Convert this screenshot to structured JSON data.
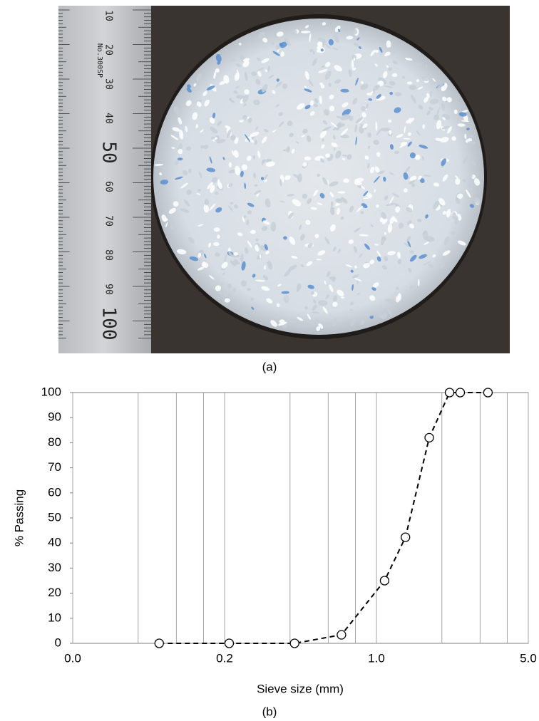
{
  "figure": {
    "label_a": "(a)",
    "label_b": "(b)"
  },
  "photo": {
    "ruler_labels": [
      "10",
      "20",
      "30",
      "40",
      "50",
      "60",
      "70",
      "80",
      "90",
      "100"
    ],
    "ruler_brand": "No.300SP"
  },
  "chart_data": {
    "type": "line",
    "x_label": "Sieve size (mm)",
    "y_label": "% Passing",
    "x_scale": "log",
    "xlim": [
      0.04,
      5.0
    ],
    "xticks": [
      {
        "value": 0.04,
        "label": "0.0"
      },
      0.2,
      {
        "value": 1,
        "label": "1.0"
      },
      {
        "value": 5,
        "label": "5.0"
      }
    ],
    "x_minor_gridlines": [
      0.08,
      0.12,
      0.16,
      0.4,
      0.6,
      0.8,
      2,
      3,
      4
    ],
    "ylim": [
      0,
      100
    ],
    "yticks": [
      0,
      10,
      20,
      30,
      40,
      50,
      60,
      70,
      80,
      90,
      100
    ],
    "grid": "x",
    "color": "#000000",
    "line_style": "dashed",
    "marker": "open-circle",
    "x": [
      0.1,
      0.21,
      0.42,
      0.69,
      1.09,
      1.36,
      1.75,
      2.17,
      2.43,
      3.26
    ],
    "values": [
      0,
      0,
      0,
      3.4,
      25,
      42.3,
      82,
      100,
      100,
      100
    ]
  }
}
